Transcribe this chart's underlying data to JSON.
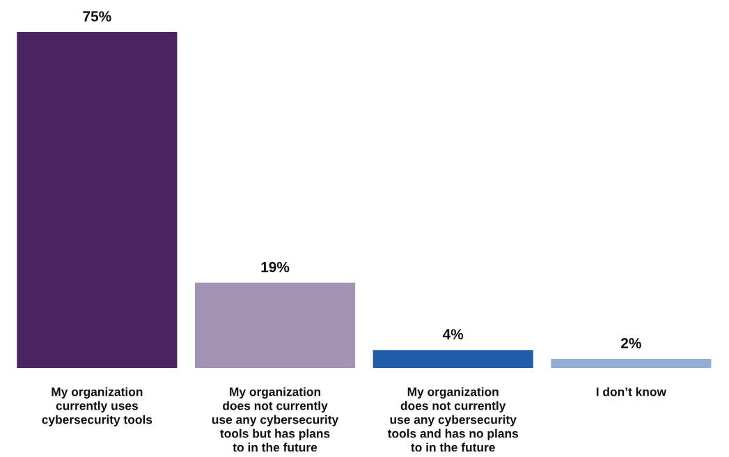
{
  "chart_data": {
    "type": "bar",
    "categories": [
      "My organization\ncurrently uses\ncybersecurity tools",
      "My organization\ndoes not currently\nuse any cybersecurity\ntools but has plans\nto in the future",
      "My organization\ndoes not currently\nuse any cybersecurity\ntools and has no plans\nto in the future",
      "I don’t know"
    ],
    "values": [
      75,
      19,
      4,
      2
    ],
    "colors": [
      "#4a2360",
      "#a493b3",
      "#225ba8",
      "#93aed6"
    ],
    "value_labels": [
      "75%",
      "19%",
      "4%",
      "2%"
    ]
  }
}
